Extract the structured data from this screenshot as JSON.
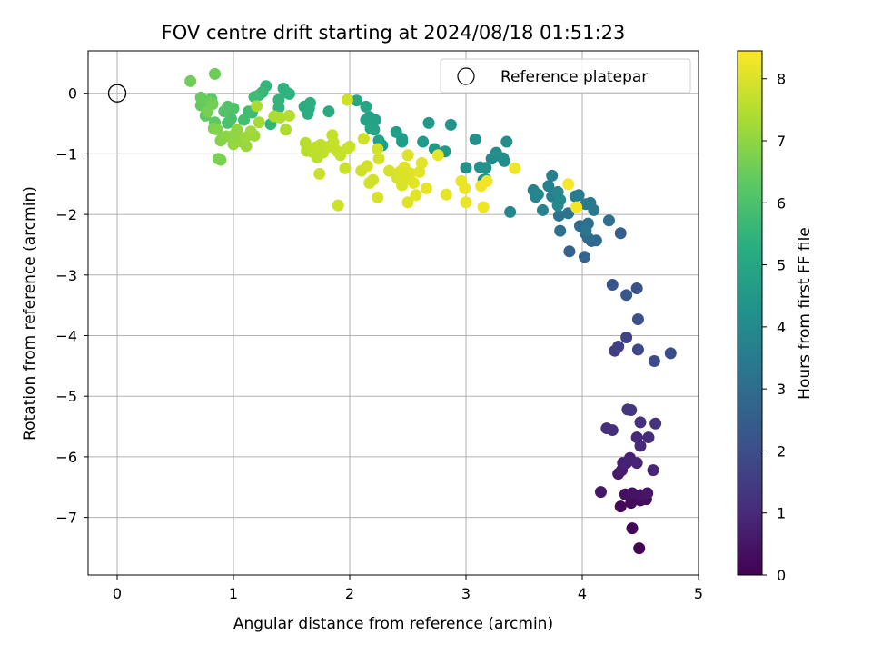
{
  "chart_data": {
    "type": "scatter",
    "title": "FOV centre drift starting at 2024/08/18 01:51:23",
    "xlabel": "Angular distance from reference (arcmin)",
    "ylabel": "Rotation from reference (arcmin)",
    "xlim": [
      -0.25,
      5.0
    ],
    "ylim": [
      -7.95,
      0.7
    ],
    "xticks": [
      0,
      1,
      2,
      3,
      4,
      5
    ],
    "yticks": [
      0,
      -1,
      -2,
      -3,
      -4,
      -5,
      -6,
      -7
    ],
    "grid": true,
    "colormap": "viridis",
    "colorbar": {
      "label": "Hours from first FF file",
      "range": [
        0,
        8.45
      ],
      "ticks": [
        0,
        1,
        2,
        3,
        4,
        5,
        6,
        7,
        8
      ]
    },
    "legend": {
      "placement": "top-right",
      "entries": [
        "Reference platepar"
      ]
    },
    "reference_point": {
      "x": 0,
      "y": 0
    },
    "points": [
      [
        4.49,
        -7.51,
        0.05
      ],
      [
        4.43,
        -7.18,
        0.1
      ],
      [
        4.33,
        -6.82,
        0.15
      ],
      [
        4.42,
        -6.76,
        0.2
      ],
      [
        4.5,
        -6.72,
        0.25
      ],
      [
        4.55,
        -6.7,
        0.3
      ],
      [
        4.37,
        -6.62,
        0.35
      ],
      [
        4.43,
        -6.6,
        0.4
      ],
      [
        4.5,
        -6.63,
        0.45
      ],
      [
        4.56,
        -6.6,
        0.5
      ],
      [
        4.16,
        -6.58,
        0.55
      ],
      [
        4.31,
        -6.28,
        0.6
      ],
      [
        4.34,
        -6.22,
        0.65
      ],
      [
        4.35,
        -6.1,
        0.7
      ],
      [
        4.41,
        -6.02,
        0.75
      ],
      [
        4.38,
        -6.1,
        0.8
      ],
      [
        4.47,
        -6.1,
        0.85
      ],
      [
        4.61,
        -6.22,
        0.9
      ],
      [
        4.47,
        -5.68,
        0.95
      ],
      [
        4.5,
        -5.82,
        1.0
      ],
      [
        4.57,
        -5.68,
        1.05
      ],
      [
        4.21,
        -5.53,
        1.1
      ],
      [
        4.26,
        -5.56,
        1.15
      ],
      [
        4.5,
        -5.43,
        1.2
      ],
      [
        4.63,
        -5.45,
        1.25
      ],
      [
        4.39,
        -5.22,
        1.3
      ],
      [
        4.42,
        -5.23,
        1.35
      ],
      [
        4.28,
        -4.25,
        1.5
      ],
      [
        4.31,
        -4.18,
        1.6
      ],
      [
        4.38,
        -4.03,
        1.7
      ],
      [
        4.48,
        -4.23,
        1.8
      ],
      [
        4.62,
        -4.42,
        1.9
      ],
      [
        4.76,
        -4.29,
        2.0
      ],
      [
        4.48,
        -3.73,
        2.05
      ],
      [
        4.47,
        -3.22,
        2.1
      ],
      [
        4.26,
        -3.16,
        2.2
      ],
      [
        4.38,
        -3.33,
        2.3
      ],
      [
        4.33,
        -2.31,
        2.5
      ],
      [
        3.89,
        -2.61,
        2.6
      ],
      [
        4.02,
        -2.7,
        2.7
      ],
      [
        4.08,
        -2.44,
        2.8
      ],
      [
        4.12,
        -2.43,
        2.85
      ],
      [
        4.03,
        -2.32,
        2.9
      ],
      [
        4.05,
        -2.39,
        2.95
      ],
      [
        3.98,
        -2.19,
        3.0
      ],
      [
        4.05,
        -2.15,
        3.05
      ],
      [
        4.23,
        -2.1,
        3.1
      ],
      [
        3.81,
        -2.27,
        3.15
      ],
      [
        3.88,
        -1.98,
        3.2
      ],
      [
        3.8,
        -2.02,
        3.25
      ],
      [
        4.03,
        -2.26,
        3.3
      ],
      [
        4.1,
        -1.93,
        3.35
      ],
      [
        4.07,
        -1.81,
        3.4
      ],
      [
        4.03,
        -1.83,
        3.45
      ],
      [
        3.94,
        -1.7,
        3.5
      ],
      [
        3.97,
        -1.68,
        3.55
      ],
      [
        3.74,
        -1.7,
        3.6
      ],
      [
        3.74,
        -1.36,
        3.65
      ],
      [
        3.71,
        -1.53,
        3.7
      ],
      [
        3.66,
        -1.93,
        3.75
      ],
      [
        3.58,
        -1.6,
        3.8
      ],
      [
        3.6,
        -1.71,
        3.85
      ],
      [
        3.62,
        -1.67,
        3.9
      ],
      [
        3.79,
        -1.85,
        3.95
      ],
      [
        3.79,
        -1.63,
        3.95
      ],
      [
        3.81,
        -1.76,
        4.0
      ],
      [
        3.38,
        -1.96,
        4.0
      ],
      [
        3.22,
        -1.08,
        4.05
      ],
      [
        3.26,
        -1.03,
        4.05
      ],
      [
        3.32,
        -1.07,
        4.1
      ],
      [
        3.33,
        -1.12,
        4.1
      ],
      [
        3.35,
        -0.8,
        4.15
      ],
      [
        3.26,
        -0.98,
        4.15
      ],
      [
        3.08,
        -0.76,
        4.2
      ],
      [
        3.0,
        -1.23,
        4.25
      ],
      [
        3.12,
        -1.22,
        4.25
      ],
      [
        3.17,
        -1.23,
        4.3
      ],
      [
        3.15,
        -1.43,
        4.35
      ],
      [
        3.17,
        -1.42,
        4.35
      ],
      [
        2.87,
        -0.52,
        4.4
      ],
      [
        2.82,
        -0.96,
        4.45
      ],
      [
        2.73,
        -0.92,
        4.5
      ],
      [
        2.68,
        -0.49,
        4.5
      ],
      [
        2.63,
        -0.8,
        4.55
      ],
      [
        2.45,
        -0.8,
        4.6
      ],
      [
        2.45,
        -0.75,
        4.65
      ],
      [
        2.4,
        -0.64,
        4.7
      ],
      [
        2.28,
        -0.86,
        4.75
      ],
      [
        2.25,
        -0.78,
        4.8
      ],
      [
        2.2,
        -0.58,
        4.8
      ],
      [
        2.22,
        -0.44,
        4.85
      ],
      [
        2.17,
        -0.39,
        4.85
      ],
      [
        2.14,
        -0.44,
        4.9
      ],
      [
        2.18,
        -0.58,
        4.95
      ],
      [
        2.21,
        -0.6,
        4.95
      ],
      [
        2.14,
        -0.22,
        5.0
      ],
      [
        2.06,
        -0.12,
        5.05
      ],
      [
        1.82,
        -0.3,
        5.1
      ],
      [
        1.65,
        -0.25,
        5.15
      ],
      [
        1.61,
        -0.22,
        5.2
      ],
      [
        1.64,
        -0.34,
        5.25
      ],
      [
        1.66,
        -0.16,
        5.3
      ],
      [
        1.48,
        -0.01,
        5.35
      ],
      [
        1.43,
        0.08,
        5.4
      ],
      [
        1.46,
        0.01,
        5.4
      ],
      [
        1.39,
        -0.11,
        5.45
      ],
      [
        1.39,
        -0.24,
        5.5
      ],
      [
        1.32,
        -0.51,
        5.55
      ],
      [
        1.28,
        0.12,
        5.6
      ],
      [
        1.25,
        0.02,
        5.65
      ],
      [
        1.22,
        -0.03,
        5.7
      ],
      [
        1.16,
        -0.32,
        5.75
      ],
      [
        1.18,
        -0.06,
        5.8
      ],
      [
        1.13,
        -0.3,
        5.85
      ],
      [
        1.09,
        -0.44,
        5.9
      ],
      [
        0.98,
        -0.42,
        5.95
      ],
      [
        0.95,
        -0.49,
        6.0
      ],
      [
        1.0,
        -0.25,
        6.05
      ],
      [
        0.95,
        -0.22,
        6.1
      ],
      [
        0.92,
        -0.3,
        6.15
      ],
      [
        0.82,
        -0.18,
        6.2
      ],
      [
        0.81,
        -0.09,
        6.25
      ],
      [
        0.84,
        -0.48,
        6.3
      ],
      [
        0.76,
        -0.37,
        6.35
      ],
      [
        0.72,
        -0.2,
        6.4
      ],
      [
        0.72,
        -0.07,
        6.45
      ],
      [
        0.78,
        -0.13,
        6.5
      ],
      [
        0.84,
        0.32,
        6.55
      ],
      [
        0.63,
        0.2,
        6.6
      ],
      [
        0.82,
        -0.17,
        6.65
      ],
      [
        0.78,
        -0.3,
        6.7
      ],
      [
        0.87,
        -1.08,
        6.75
      ],
      [
        0.89,
        -1.1,
        6.75
      ],
      [
        0.83,
        -0.58,
        6.8
      ],
      [
        0.86,
        -0.6,
        6.85
      ],
      [
        0.89,
        -0.78,
        6.9
      ],
      [
        0.94,
        -0.71,
        6.95
      ],
      [
        1.01,
        -0.68,
        7.0
      ],
      [
        1.03,
        -0.6,
        7.05
      ],
      [
        1.07,
        -0.8,
        7.05
      ],
      [
        1.0,
        -0.84,
        7.1
      ],
      [
        1.11,
        -0.87,
        7.15
      ],
      [
        1.1,
        -0.73,
        7.2
      ],
      [
        1.18,
        -0.7,
        7.2
      ],
      [
        1.15,
        -0.63,
        7.25
      ],
      [
        1.22,
        -0.48,
        7.3
      ],
      [
        1.2,
        -0.21,
        7.35
      ],
      [
        1.35,
        -0.38,
        7.4
      ],
      [
        1.4,
        -0.4,
        7.45
      ],
      [
        1.45,
        -0.6,
        7.45
      ],
      [
        1.48,
        -0.37,
        7.5
      ],
      [
        1.62,
        -0.82,
        7.55
      ],
      [
        1.63,
        -0.95,
        7.55
      ],
      [
        1.68,
        -0.97,
        7.6
      ],
      [
        1.72,
        -1.06,
        7.6
      ],
      [
        1.75,
        -0.85,
        7.65
      ],
      [
        1.77,
        -0.98,
        7.65
      ],
      [
        1.71,
        -0.89,
        7.65
      ],
      [
        1.82,
        -0.88,
        7.7
      ],
      [
        1.85,
        -0.69,
        7.7
      ],
      [
        1.86,
        -0.81,
        7.7
      ],
      [
        1.89,
        -0.95,
        7.75
      ],
      [
        1.92,
        -1.02,
        7.75
      ],
      [
        1.98,
        -0.91,
        7.75
      ],
      [
        1.96,
        -1.24,
        7.8
      ],
      [
        2.0,
        -0.88,
        7.8
      ],
      [
        1.74,
        -1.33,
        7.8
      ],
      [
        1.9,
        -1.85,
        7.85
      ],
      [
        1.98,
        -0.11,
        7.85
      ],
      [
        2.12,
        -0.75,
        7.85
      ],
      [
        2.1,
        -1.28,
        7.85
      ],
      [
        2.15,
        -1.2,
        7.9
      ],
      [
        2.17,
        -1.48,
        7.9
      ],
      [
        2.2,
        -1.43,
        7.9
      ],
      [
        2.24,
        -0.92,
        7.9
      ],
      [
        2.25,
        -1.08,
        7.95
      ],
      [
        2.24,
        -1.72,
        7.95
      ],
      [
        2.34,
        -1.28,
        7.95
      ],
      [
        2.41,
        -1.4,
        7.95
      ],
      [
        2.45,
        -1.52,
        8.0
      ],
      [
        2.43,
        -1.3,
        8.0
      ],
      [
        2.46,
        -1.43,
        8.0
      ],
      [
        2.47,
        -1.22,
        8.05
      ],
      [
        2.5,
        -1.02,
        8.05
      ],
      [
        2.5,
        -1.8,
        8.05
      ],
      [
        2.52,
        -1.32,
        8.05
      ],
      [
        2.55,
        -1.48,
        8.1
      ],
      [
        2.57,
        -1.68,
        8.1
      ],
      [
        2.6,
        -1.3,
        8.1
      ],
      [
        2.62,
        -1.15,
        8.1
      ],
      [
        2.66,
        -1.57,
        8.15
      ],
      [
        2.76,
        -1.02,
        8.15
      ],
      [
        2.83,
        -1.67,
        8.15
      ],
      [
        2.96,
        -1.45,
        8.2
      ],
      [
        2.99,
        -1.57,
        8.2
      ],
      [
        3.0,
        -1.8,
        8.2
      ],
      [
        3.13,
        -1.53,
        8.25
      ],
      [
        3.15,
        -1.88,
        8.25
      ],
      [
        3.18,
        -1.45,
        8.3
      ],
      [
        3.42,
        -1.24,
        8.3
      ],
      [
        3.95,
        -1.88,
        8.35
      ],
      [
        3.88,
        -1.5,
        8.4
      ]
    ]
  }
}
